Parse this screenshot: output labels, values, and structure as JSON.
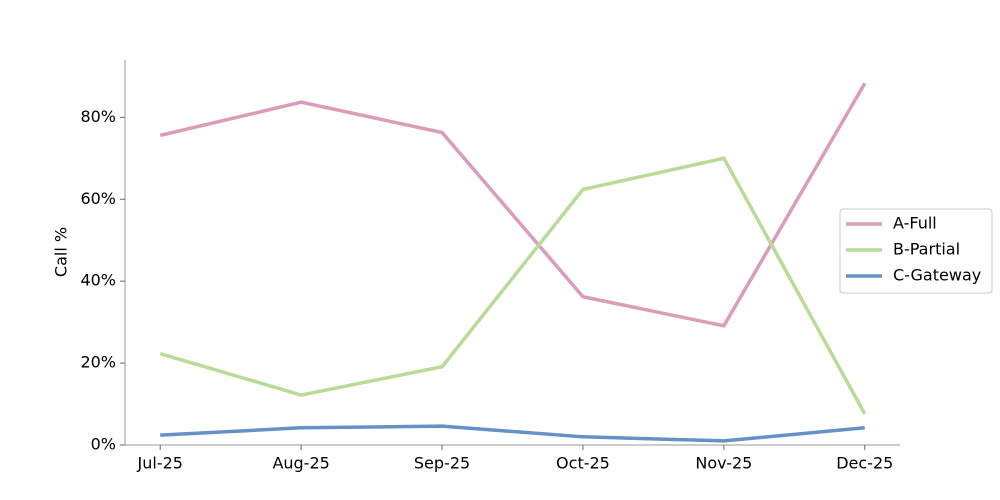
{
  "chart_data": {
    "type": "line",
    "y_label": "Call %",
    "categories": [
      "Jul-25",
      "Aug-25",
      "Sep-25",
      "Oct-25",
      "Nov-25",
      "Dec-25"
    ],
    "series": [
      {
        "name": "A-Full",
        "color": "#db9cba",
        "values": [
          75.6,
          83.7,
          76.3,
          36.2,
          29.1,
          88.3
        ]
      },
      {
        "name": "B-Partial",
        "color": "#b8dc96",
        "values": [
          22.3,
          12.2,
          19.1,
          62.4,
          70.0,
          7.6
        ]
      },
      {
        "name": "C-Gateway",
        "color": "#6690c8",
        "values": [
          2.4,
          4.2,
          4.6,
          2.0,
          1.0,
          4.2
        ]
      }
    ],
    "ylim": [
      0,
      94
    ],
    "yticks": [
      {
        "value": 0,
        "label": "0%"
      },
      {
        "value": 20,
        "label": "20%"
      },
      {
        "value": 40,
        "label": "40%"
      },
      {
        "value": 60,
        "label": "60%"
      },
      {
        "value": 80,
        "label": "80%"
      }
    ],
    "legend": "right"
  }
}
